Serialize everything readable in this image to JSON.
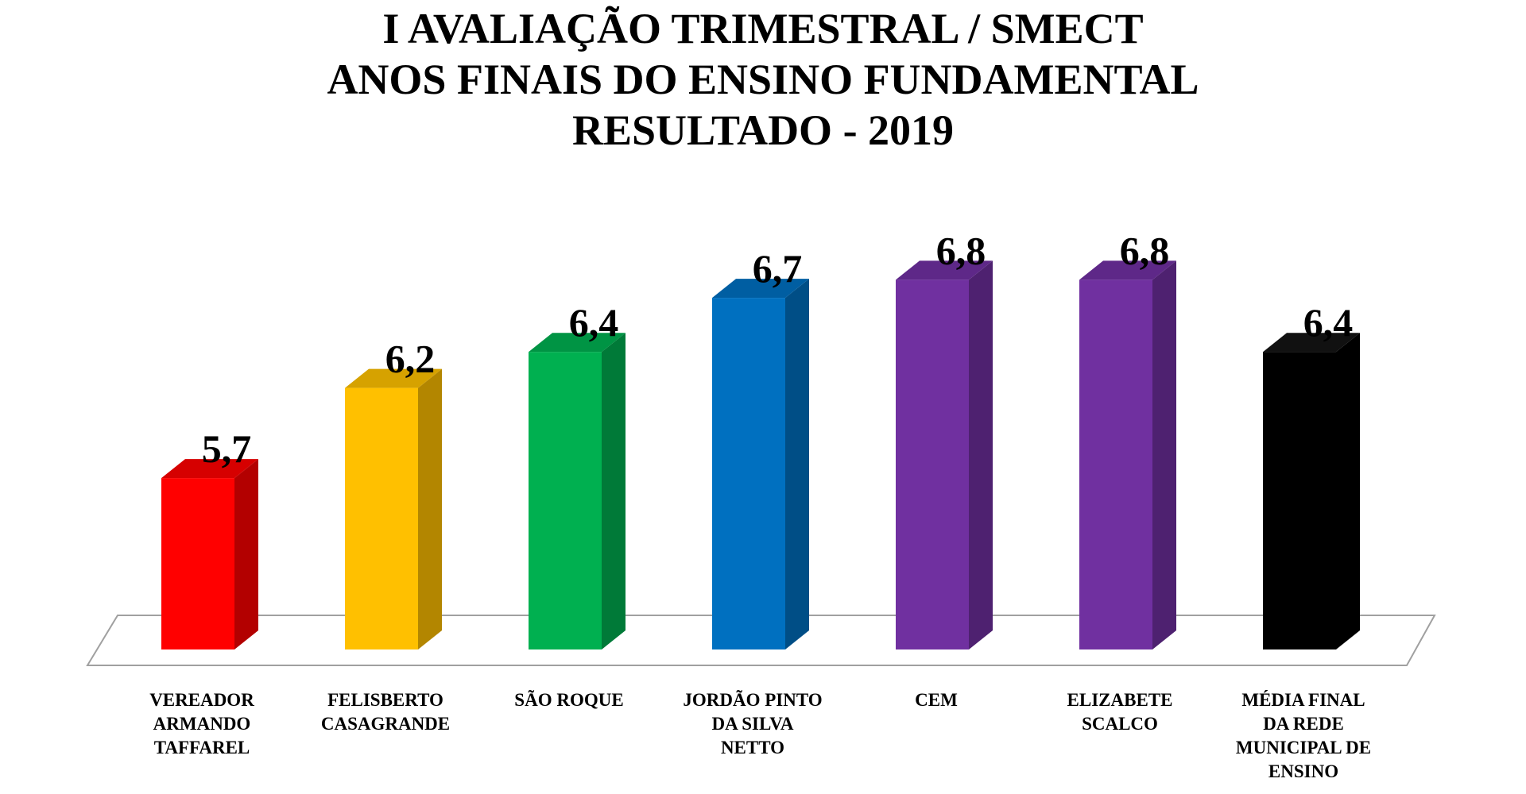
{
  "chart_data": {
    "type": "bar",
    "title_lines": [
      "I AVALIAÇÃO TRIMESTRAL / SMECT",
      "ANOS FINAIS DO ENSINO FUNDAMENTAL",
      "RESULTADO - 2019"
    ],
    "categories": [
      [
        "VEREADOR",
        "ARMANDO",
        "TAFFAREL"
      ],
      [
        "FELISBERTO",
        "CASAGRANDE"
      ],
      [
        "SÃO ROQUE"
      ],
      [
        "JORDÃO PINTO",
        "DA SILVA",
        "NETTO"
      ],
      [
        "CEM"
      ],
      [
        "ELIZABETE",
        "SCALCO"
      ],
      [
        "MÉDIA FINAL",
        "DA REDE",
        "MUNICIPAL DE",
        "ENSINO"
      ]
    ],
    "values": [
      5.7,
      6.2,
      6.4,
      6.7,
      6.8,
      6.8,
      6.4
    ],
    "value_labels": [
      "5,7",
      "6,2",
      "6,4",
      "6,7",
      "6,8",
      "6,8",
      "6,4"
    ],
    "colors": [
      "#ff0000",
      "#ffc000",
      "#00b050",
      "#0070c0",
      "#7030a0",
      "#7030a0",
      "#000000"
    ],
    "side_colors": [
      "#b30000",
      "#b38600",
      "#007a38",
      "#004e86",
      "#4e2170",
      "#4e2170",
      "#000000"
    ],
    "top_colors": [
      "#d60000",
      "#d6a200",
      "#009444",
      "#005ea2",
      "#5e2888",
      "#5e2888",
      "#111111"
    ],
    "style": "3d-column",
    "grid": false,
    "legend": "none"
  }
}
